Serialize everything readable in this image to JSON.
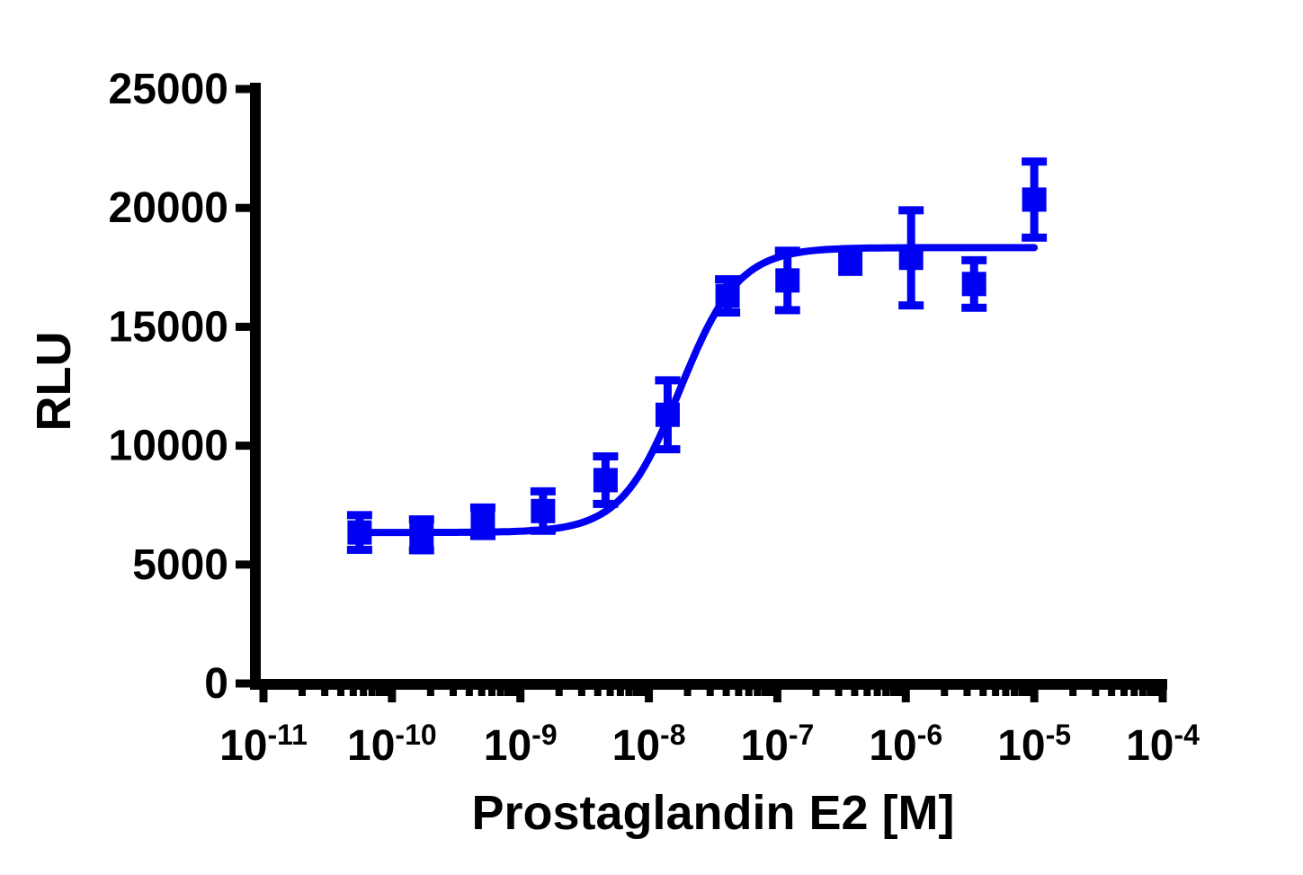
{
  "chart_data": {
    "type": "scatter",
    "title": "",
    "xlabel": "Prostaglandin E2 [M]",
    "ylabel": "RLU",
    "x_scale": "log10",
    "x_tick_base": "10",
    "x_tick_exponents": [
      "-11",
      "-10",
      "-9",
      "-8",
      "-7",
      "-6",
      "-5",
      "-4"
    ],
    "x_decades": [
      -11,
      -10,
      -9,
      -8,
      -7,
      -6,
      -5,
      -4
    ],
    "xlim_log": [
      -11,
      -4
    ],
    "ylim": [
      0,
      25000
    ],
    "y_tick_step": 5000,
    "y_tick_values": [
      0,
      5000,
      10000,
      15000,
      20000,
      25000
    ],
    "y_tick_labels": [
      "0",
      "5000",
      "10000",
      "15000",
      "20000",
      "25000"
    ],
    "grid": false,
    "legend_position": "none",
    "series": [
      {
        "name": "Prostaglandin E2",
        "marker": "square",
        "color": "#0000f2",
        "points": [
          {
            "x": 5.6e-11,
            "y": 6350,
            "err": 730
          },
          {
            "x": 1.7e-10,
            "y": 6250,
            "err": 650
          },
          {
            "x": 5.1e-10,
            "y": 6800,
            "err": 600
          },
          {
            "x": 1.5e-09,
            "y": 7250,
            "err": 830
          },
          {
            "x": 4.6e-09,
            "y": 8550,
            "err": 1000
          },
          {
            "x": 1.4e-08,
            "y": 11300,
            "err": 1450
          },
          {
            "x": 4.1e-08,
            "y": 16300,
            "err": 700
          },
          {
            "x": 1.2e-07,
            "y": 16950,
            "err": 1250
          },
          {
            "x": 3.7e-07,
            "y": 17650,
            "err": 0
          },
          {
            "x": 1.1e-06,
            "y": 17900,
            "err": 2000
          },
          {
            "x": 3.4e-06,
            "y": 16800,
            "err": 1000
          },
          {
            "x": 1e-05,
            "y": 20350,
            "err": 1600
          }
        ]
      }
    ],
    "fit_curve": {
      "model": "log(agonist) vs response (sigmoidal)",
      "bottom": 6350,
      "top": 18330,
      "log_ec50": -7.76,
      "hill": 1.9,
      "color": "#0000f2"
    }
  },
  "colors": {
    "data": "#0000f2",
    "axis": "#000000",
    "background": "#ffffff"
  }
}
